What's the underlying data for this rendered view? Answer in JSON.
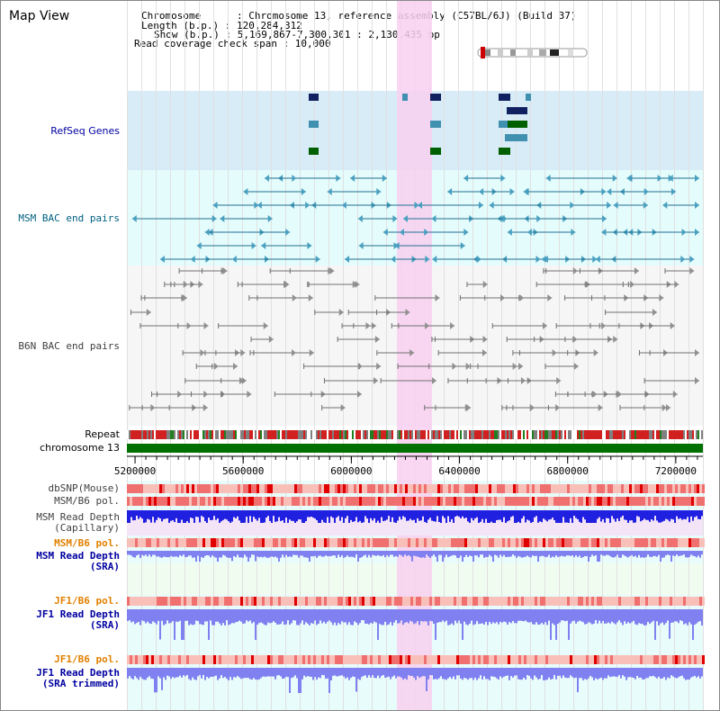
{
  "page": {
    "title": "Map View"
  },
  "info": {
    "chromosome": "Chromosome      : Chromosome 13, reference assembly (C57BL/6J) (Build 37)",
    "length": "Length (b.p.) : 120,284,312",
    "show": "Show (b.p.) : 5,169,867-7,300,301 : 2,130,435 bp",
    "coverage": "Read coverage check span : 10,000"
  },
  "tracks": {
    "refseq": {
      "label": "RefSeq Genes",
      "color": "#0000a0"
    },
    "msm_bac": {
      "label": "MSM BAC end pairs",
      "color": "#006080"
    },
    "b6n_bac": {
      "label": "B6N BAC end pairs",
      "color": "#404040"
    },
    "repeat": {
      "label": "Repeat",
      "color": "#000000"
    },
    "chromosome": {
      "label": "chromosome 13",
      "color": "#000000"
    },
    "dbsnp": {
      "label": "dbSNP(Mouse)",
      "color": "#404040"
    },
    "msm_b6_pol_1": {
      "label": "MSM/B6 pol.",
      "color": "#404040"
    },
    "msm_read_depth_cap": {
      "label": "MSM Read Depth\n(Capillary)",
      "color": "#404040"
    },
    "msm_b6_pol_2": {
      "label": "MSM/B6 pol.",
      "color": "#e08000"
    },
    "msm_read_depth_sra": {
      "label": "MSM Read Depth\n(SRA)",
      "color": "#0000a0"
    },
    "jf1_b6_pol_1": {
      "label": "JF1/B6 pol.",
      "color": "#e08000"
    },
    "jf1_read_depth_sra": {
      "label": "JF1 Read Depth\n(SRA)",
      "color": "#0000a0"
    },
    "jf1_b6_pol_2": {
      "label": "JF1/B6 pol.",
      "color": "#e08000"
    },
    "jf1_read_depth_trim": {
      "label": "JF1 Read Depth\n(SRA trimmed)",
      "color": "#0000a0"
    }
  },
  "axis": {
    "range_bp": [
      5169867,
      7300301
    ],
    "ticks": [
      "5200000",
      "5600000",
      "6000000",
      "6400000",
      "6800000",
      "7200000"
    ],
    "tick_values": [
      5200000,
      5600000,
      6000000,
      6400000,
      6800000,
      7200000
    ]
  },
  "colors": {
    "highlight": "#f8d0f0",
    "refseq_bg": "#d8ecf8",
    "msm_bac_bg": "#e4fcfc",
    "b6n_bg": "#f6f6f6",
    "gene_green": "#006000",
    "gene_navy": "#102060",
    "gene_teal": "#4090b0",
    "msm_bac_line": "#207090",
    "b6n_line": "#707070",
    "chrom_green": "#007000",
    "depth_blue": "#2020e0",
    "depth_light_blue": "#8080f0",
    "pol_red": "#f07070",
    "pol_light_red": "#f8c0b8"
  }
}
